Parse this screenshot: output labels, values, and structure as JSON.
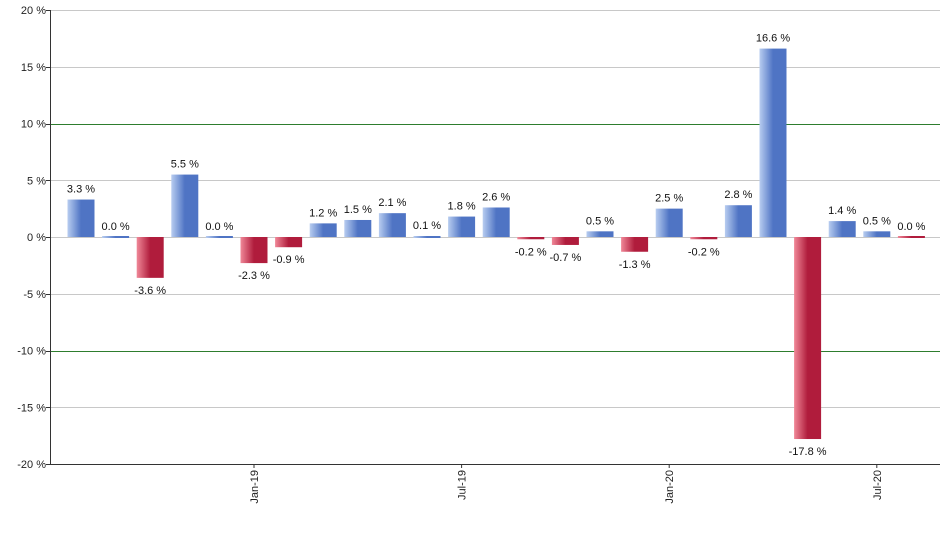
{
  "chart_data": {
    "type": "bar",
    "title": "",
    "xlabel": "",
    "ylabel": "",
    "ylim": [
      -20,
      20
    ],
    "y_ticks": [
      20,
      15,
      10,
      5,
      0,
      -5,
      -10,
      -15,
      -20
    ],
    "y_tick_labels": [
      "20 %",
      "15 %",
      "10 %",
      "5 %",
      "0 %",
      "-5 %",
      "-10 %",
      "-15 %",
      "-20 %"
    ],
    "reference_lines": [
      10,
      -10
    ],
    "x_tick_labels": [
      {
        "label": "Jan-19",
        "index": 5
      },
      {
        "label": "Jul-19",
        "index": 11
      },
      {
        "label": "Jan-20",
        "index": 17
      },
      {
        "label": "Jul-20",
        "index": 23
      }
    ],
    "values": [
      3.3,
      0.0,
      -3.6,
      5.5,
      0.0,
      -2.3,
      -0.9,
      1.2,
      1.5,
      2.1,
      0.1,
      1.8,
      2.6,
      -0.2,
      -0.7,
      0.5,
      -1.3,
      2.5,
      -0.2,
      2.8,
      16.6,
      -17.8,
      1.4,
      0.5,
      0.0
    ],
    "value_labels": [
      "3.3 %",
      "0.0 %",
      "-3.6 %",
      "5.5 %",
      "0.0 %",
      "-2.3 %",
      "-0.9 %",
      "1.2 %",
      "1.5 %",
      "2.1 %",
      "0.1 %",
      "1.8 %",
      "2.6 %",
      "-0.2 %",
      "-0.7 %",
      "0.5 %",
      "-1.3 %",
      "2.5 %",
      "-0.2 %",
      "2.8 %",
      "16.6 %",
      "-17.8 %",
      "1.4 %",
      "0.5 %",
      "0.0 %"
    ],
    "colors": {
      "positive_light": "#b8cdf0",
      "positive_dark": "#4f74c4",
      "negative_light": "#f08898",
      "negative_dark": "#b01c3c",
      "grid": "#c8c8c8",
      "reference": "#2e7d2e",
      "axis": "#333333"
    }
  }
}
